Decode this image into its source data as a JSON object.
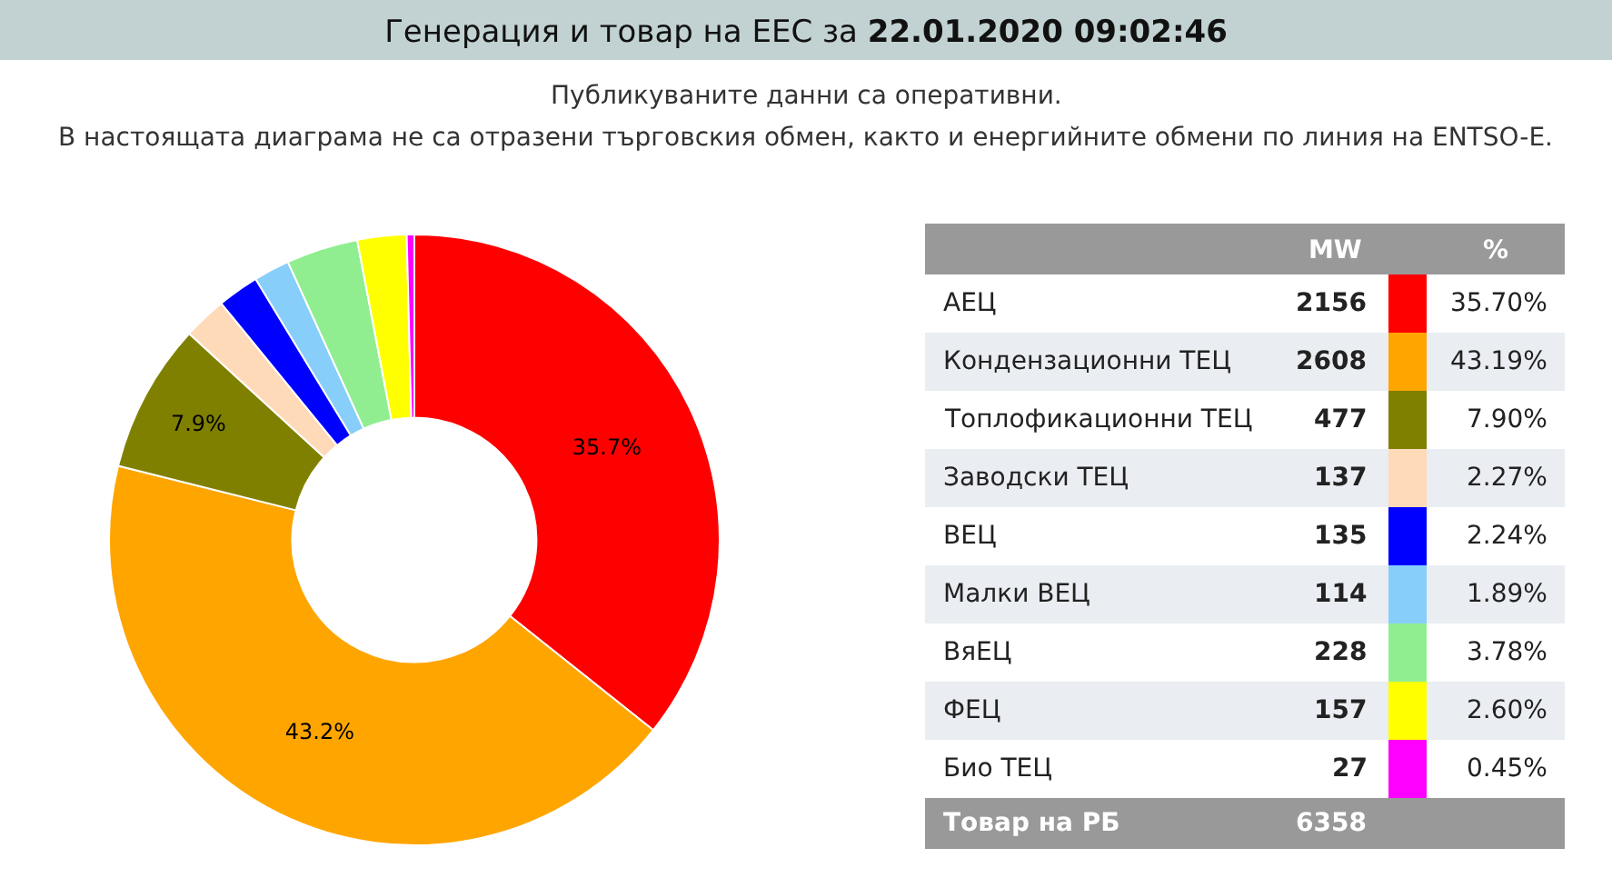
{
  "chart_data": [
    {
      "type": "donut",
      "title": "Генерация и товар на ЕЕС за 22.01.2020 09:02:46",
      "subtitle": "Публикуваните данни са оперативни.\nВ настоящата диаграма не са отразени търговския обмен, както и енергийните обмени по линия на ENTSO-E.",
      "categories": [
        null,
        null,
        null,
        null,
        null,
        null,
        null,
        null,
        null
      ],
      "values": [
        35.7,
        43.2,
        7.9,
        2.3,
        2.2,
        1.9,
        3.8,
        2.6,
        0.4
      ],
      "colors": [
        "#ff0000",
        "#ffa500",
        "#808000",
        "#ffdab9",
        "#0000ff",
        "#87cefa",
        "#90ee90",
        "#ffff00",
        "#ff00ff"
      ],
      "value_labels": [
        "35.7%",
        "43.2%",
        "7.9%",
        null,
        null,
        null,
        null,
        null,
        null
      ]
    },
    {
      "type": "other",
      "categories": [
        "АЕЦ",
        "Кондензационни ТЕЦ",
        "Топлофикационни ТЕЦ",
        "Заводски ТЕЦ",
        "ВЕЦ",
        "Малки ВЕЦ",
        "ВяЕЦ",
        "ФЕЦ",
        "Био ТЕЦ",
        "Товар на РБ"
      ],
      "series": [
        {
          "name": "MW",
          "colors": [
            "#ff0000",
            "#ffa500",
            "#808000",
            "#ffdab9",
            "#0000ff",
            "#87cefa",
            "#90ee90",
            "#ffff00",
            "#ff00ff",
            null
          ],
          "values": [
            2156,
            2608,
            477,
            137,
            135,
            114,
            228,
            157,
            27,
            6358
          ]
        },
        {
          "name": "%",
          "values": [
            35.7,
            43.19,
            7.9,
            2.27,
            2.24,
            1.89,
            3.78,
            2.6,
            0.45,
            null
          ],
          "value_labels": [
            "35.70%",
            "43.19%",
            "7.90%",
            "2.27%",
            "2.24%",
            "1.89%",
            "3.78%",
            "2.60%",
            "0.45%",
            null
          ]
        }
      ],
      "data_labels": true
    }
  ]
}
